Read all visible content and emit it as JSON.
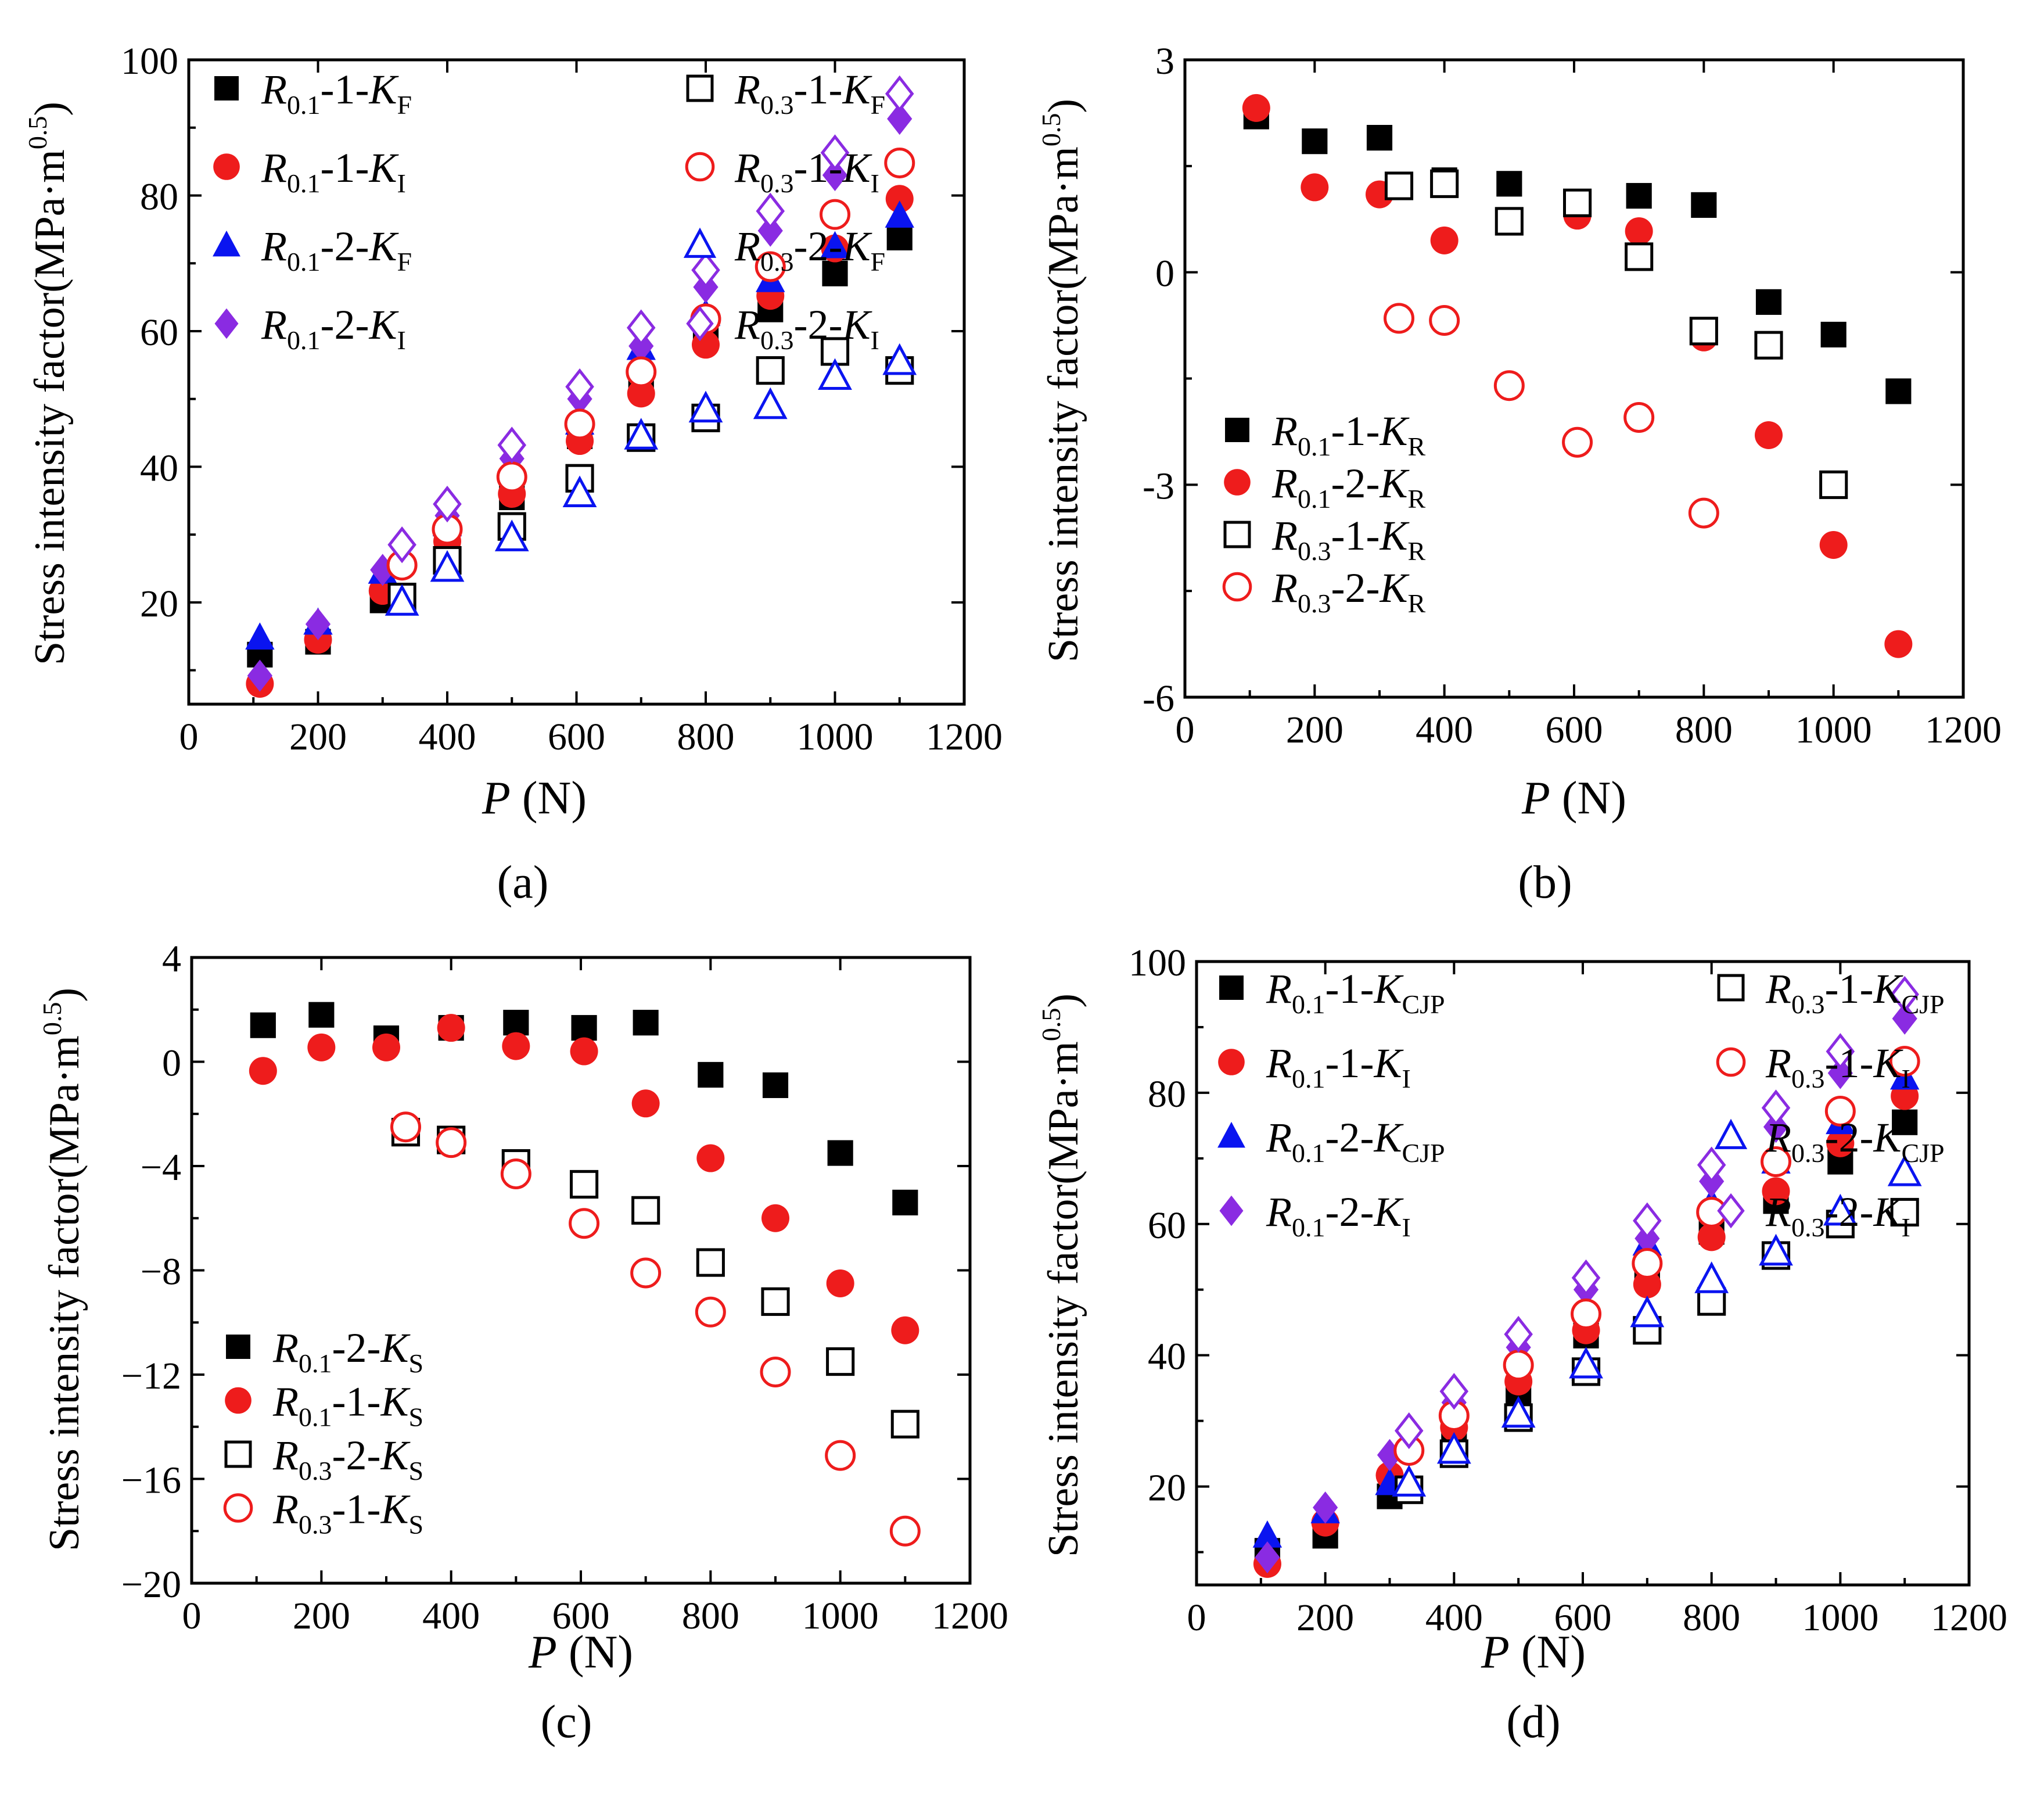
{
  "colors": {
    "black": "#000000",
    "red": "#ee1c1c",
    "blue": "#0a14f0",
    "purple": "#8a2be2"
  },
  "chart_data": [
    {
      "id": "a",
      "type": "scatter",
      "caption": "(a)",
      "ylabel": "Stress intensity factor(MPa·m0.5)",
      "xlabel": "P (N)",
      "xlim": [
        0,
        1200
      ],
      "ylim": [
        5,
        100
      ],
      "xticks": [
        "0",
        "200",
        "400",
        "600",
        "800",
        "1000",
        "1200"
      ],
      "yticks": [
        "20",
        "40",
        "60",
        "80",
        "100"
      ],
      "legend_position": "top-left",
      "legend_columns": 2,
      "series": [
        {
          "name": "R0.1-1-KF",
          "r": "0.1",
          "n": "1",
          "k": "F",
          "marker": "square",
          "fill": true,
          "color": "#000000",
          "x": [
            110,
            200,
            300,
            400,
            500,
            605,
            700,
            800,
            900,
            1000,
            1100
          ],
          "y": [
            12.3,
            14.2,
            20.3,
            27.5,
            35.5,
            44.5,
            53.0,
            59.8,
            63.2,
            68.5,
            73.8
          ]
        },
        {
          "name": "R0.1-1-KI",
          "r": "0.1",
          "n": "1",
          "k": "I",
          "marker": "circle",
          "fill": true,
          "color": "#ee1c1c",
          "x": [
            110,
            200,
            300,
            400,
            500,
            605,
            700,
            800,
            900,
            1000,
            1100
          ],
          "y": [
            8.0,
            14.5,
            21.7,
            29.0,
            36.0,
            43.8,
            50.8,
            58.0,
            65.2,
            72.2,
            79.5
          ]
        },
        {
          "name": "R0.1-2-KF",
          "r": "0.1",
          "n": "2",
          "k": "F",
          "marker": "triangle",
          "fill": true,
          "color": "#0a14f0",
          "x": [
            110,
            200,
            300,
            400,
            500,
            605,
            700,
            800,
            900,
            1000,
            1100
          ],
          "y": [
            14.8,
            17.0,
            24.5,
            31.5,
            39.5,
            46.5,
            57.5,
            62.5,
            67.5,
            72.5,
            77.0
          ]
        },
        {
          "name": "R0.1-2-KI",
          "r": "0.1",
          "n": "2",
          "k": "I",
          "marker": "diamond",
          "fill": true,
          "color": "#8a2be2",
          "x": [
            110,
            200,
            300,
            400,
            500,
            605,
            700,
            800,
            900,
            1000,
            1100
          ],
          "y": [
            9.2,
            16.8,
            24.8,
            32.8,
            41.2,
            50.0,
            57.8,
            66.5,
            74.8,
            83.0,
            91.3
          ]
        },
        {
          "name": "R0.3-1-KF",
          "r": "0.3",
          "n": "1",
          "k": "F",
          "marker": "square",
          "fill": false,
          "color": "#000000",
          "x": [
            330,
            400,
            500,
            605,
            700,
            800,
            900,
            1000,
            1100
          ],
          "y": [
            20.8,
            26.2,
            31.2,
            38.3,
            44.3,
            47.2,
            54.2,
            57.0,
            54.2
          ]
        },
        {
          "name": "R0.3-1-KI",
          "r": "0.3",
          "n": "1",
          "k": "I",
          "marker": "circle",
          "fill": false,
          "color": "#ee1c1c",
          "x": [
            330,
            400,
            500,
            605,
            700,
            800,
            900,
            1000,
            1100
          ],
          "y": [
            25.5,
            30.8,
            38.5,
            46.3,
            54.0,
            61.8,
            69.5,
            77.2,
            84.8
          ]
        },
        {
          "name": "R0.3-2-KF",
          "r": "0.3",
          "n": "2",
          "k": "F",
          "marker": "triangle",
          "fill": false,
          "color": "#0a14f0",
          "x": [
            330,
            400,
            500,
            605,
            700,
            800,
            900,
            1000,
            1100
          ],
          "y": [
            20.0,
            25.0,
            29.5,
            36.0,
            44.5,
            48.5,
            49.0,
            53.3,
            55.5
          ]
        },
        {
          "name": "R0.3-2-KI",
          "r": "0.3",
          "n": "2",
          "k": "I",
          "marker": "diamond",
          "fill": false,
          "color": "#8a2be2",
          "x": [
            330,
            400,
            500,
            605,
            700,
            800,
            900,
            1000,
            1100
          ],
          "y": [
            28.5,
            34.5,
            43.2,
            51.8,
            60.5,
            69.0,
            77.7,
            86.3,
            95.0
          ]
        }
      ]
    },
    {
      "id": "b",
      "type": "scatter",
      "caption": "(b)",
      "ylabel": "Stress intensity factor(MPa·m0.5)",
      "xlabel": "P (N)",
      "xlim": [
        0,
        1200
      ],
      "ylim": [
        -6,
        3
      ],
      "xticks": [
        "0",
        "200",
        "400",
        "600",
        "800",
        "1000",
        "1200"
      ],
      "yticks": [
        "-6",
        "-3",
        "0",
        "3"
      ],
      "legend_position": "bottom-left",
      "legend_columns": 1,
      "series": [
        {
          "name": "R0.1-1-KR",
          "r": "0.1",
          "n": "1",
          "k": "R",
          "marker": "square",
          "fill": true,
          "color": "#000000",
          "x": [
            110,
            200,
            300,
            400,
            500,
            605,
            700,
            800,
            900,
            1000,
            1100
          ],
          "y": [
            2.2,
            1.85,
            1.9,
            1.3,
            1.25,
            0.95,
            1.08,
            0.95,
            -0.42,
            -0.88,
            -1.68
          ]
        },
        {
          "name": "R0.1-2-KR",
          "r": "0.1",
          "n": "2",
          "k": "R",
          "marker": "circle",
          "fill": true,
          "color": "#ee1c1c",
          "x": [
            110,
            200,
            300,
            400,
            500,
            605,
            700,
            800,
            900,
            1000,
            1100
          ],
          "y": [
            2.32,
            1.2,
            1.1,
            0.45,
            0.72,
            0.8,
            0.58,
            -0.92,
            -2.3,
            -3.85,
            -5.25
          ]
        },
        {
          "name": "R0.3-1-KR",
          "r": "0.3",
          "n": "1",
          "k": "R",
          "marker": "square",
          "fill": false,
          "color": "#000000",
          "x": [
            330,
            400,
            500,
            605,
            700,
            800,
            900,
            1000
          ],
          "y": [
            1.22,
            1.25,
            0.72,
            0.98,
            0.22,
            -0.83,
            -1.03,
            -3.0
          ]
        },
        {
          "name": "R0.3-2-KR",
          "r": "0.3",
          "n": "2",
          "k": "R",
          "marker": "circle",
          "fill": false,
          "color": "#ee1c1c",
          "x": [
            330,
            400,
            500,
            605,
            700,
            800
          ],
          "y": [
            -0.65,
            -0.68,
            -1.6,
            -2.4,
            -2.05,
            -3.4
          ]
        }
      ]
    },
    {
      "id": "c",
      "type": "scatter",
      "caption": "(c)",
      "ylabel": "Stress intensity factor(MPa·m0.5)",
      "xlabel": "P (N)",
      "xlim": [
        0,
        1200
      ],
      "ylim": [
        -20,
        4
      ],
      "xticks": [
        "0",
        "200",
        "400",
        "600",
        "800",
        "1000",
        "1200"
      ],
      "yticks": [
        "−20",
        "−16",
        "−12",
        "−8",
        "−4",
        "0",
        "4"
      ],
      "legend_position": "bottom-left",
      "legend_columns": 1,
      "series": [
        {
          "name": "R0.1-2-KS",
          "r": "0.1",
          "n": "2",
          "k": "S",
          "marker": "square",
          "fill": true,
          "color": "#000000",
          "x": [
            110,
            200,
            300,
            400,
            500,
            605,
            700,
            800,
            900,
            1000,
            1100
          ],
          "y": [
            1.4,
            1.8,
            0.9,
            1.3,
            1.5,
            1.3,
            1.5,
            -0.5,
            -0.9,
            -3.5,
            -5.4
          ]
        },
        {
          "name": "R0.1-1-KS",
          "r": "0.1",
          "n": "1",
          "k": "S",
          "marker": "circle",
          "fill": true,
          "color": "#ee1c1c",
          "x": [
            110,
            200,
            300,
            400,
            500,
            605,
            700,
            800,
            900,
            1000,
            1100
          ],
          "y": [
            -0.35,
            0.55,
            0.55,
            1.3,
            0.6,
            0.4,
            -1.6,
            -3.7,
            -6.0,
            -8.5,
            -10.3
          ]
        },
        {
          "name": "R0.3-2-KS",
          "r": "0.3",
          "n": "2",
          "k": "S",
          "marker": "square",
          "fill": false,
          "color": "#000000",
          "x": [
            330,
            400,
            500,
            605,
            700,
            800,
            900,
            1000,
            1100
          ],
          "y": [
            -2.7,
            -3.0,
            -3.9,
            -4.7,
            -5.7,
            -7.7,
            -9.2,
            -11.5,
            -13.9
          ]
        },
        {
          "name": "R0.3-1-KS",
          "r": "0.3",
          "n": "1",
          "k": "S",
          "marker": "circle",
          "fill": false,
          "color": "#ee1c1c",
          "x": [
            330,
            400,
            500,
            605,
            700,
            800,
            900,
            1000,
            1100
          ],
          "y": [
            -2.5,
            -3.1,
            -4.3,
            -6.2,
            -8.1,
            -9.6,
            -11.9,
            -15.1,
            -18.0
          ]
        }
      ]
    },
    {
      "id": "d",
      "type": "scatter",
      "caption": "(d)",
      "ylabel": "Stress intensity factor(MPa·m0.5)",
      "xlabel": "P (N)",
      "xlim": [
        0,
        1200
      ],
      "ylim": [
        5,
        100
      ],
      "xticks": [
        "0",
        "200",
        "400",
        "600",
        "800",
        "1000",
        "1200"
      ],
      "yticks": [
        "20",
        "40",
        "60",
        "80",
        "100"
      ],
      "legend_position": "top-left",
      "legend_columns": 2,
      "series": [
        {
          "name": "R0.1-1-KCJP",
          "r": "0.1",
          "n": "1",
          "k": "CJP",
          "marker": "square",
          "fill": true,
          "color": "#000000",
          "x": [
            110,
            200,
            300,
            400,
            500,
            605,
            700,
            800,
            900,
            1000,
            1100
          ],
          "y": [
            10.2,
            12.5,
            18.5,
            26.5,
            34.0,
            43.0,
            52.2,
            58.8,
            63.5,
            69.5,
            75.5
          ]
        },
        {
          "name": "R0.1-1-KI",
          "r": "0.1",
          "n": "1",
          "k": "I",
          "marker": "circle",
          "fill": true,
          "color": "#ee1c1c",
          "x": [
            110,
            200,
            300,
            400,
            500,
            605,
            700,
            800,
            900,
            1000,
            1100
          ],
          "y": [
            8.2,
            14.5,
            21.7,
            29.0,
            36.0,
            43.8,
            50.8,
            58.0,
            65.0,
            72.3,
            79.5
          ]
        },
        {
          "name": "R0.1-2-KCJP",
          "r": "0.1",
          "n": "2",
          "k": "CJP",
          "marker": "triangle",
          "fill": true,
          "color": "#0a14f0",
          "x": [
            110,
            200,
            300,
            400,
            500,
            605,
            700,
            800,
            900,
            1000,
            1100
          ],
          "y": [
            12.5,
            16.2,
            20.5,
            25.5,
            30.5,
            38.0,
            57.0,
            63.2,
            69.5,
            75.5,
            82.3
          ]
        },
        {
          "name": "R0.1-2-KI",
          "r": "0.1",
          "n": "2",
          "k": "I",
          "marker": "diamond",
          "fill": true,
          "color": "#8a2be2",
          "x": [
            110,
            200,
            300,
            400,
            500,
            605,
            700,
            800,
            900,
            1000,
            1100
          ],
          "y": [
            9.2,
            16.8,
            24.8,
            32.8,
            41.2,
            50.0,
            57.8,
            66.5,
            74.8,
            83.0,
            91.3
          ]
        },
        {
          "name": "R0.3-1-KCJP",
          "r": "0.3",
          "n": "1",
          "k": "CJP",
          "marker": "square",
          "fill": false,
          "color": "#000000",
          "x": [
            330,
            400,
            500,
            605,
            700,
            800,
            900,
            1000,
            1100
          ],
          "y": [
            19.5,
            25.0,
            30.5,
            37.5,
            43.8,
            48.2,
            55.2,
            60.0,
            61.8
          ]
        },
        {
          "name": "R0.3-1-KI",
          "r": "0.3",
          "n": "1",
          "k": "I",
          "marker": "circle",
          "fill": false,
          "color": "#ee1c1c",
          "x": [
            330,
            400,
            500,
            605,
            700,
            800,
            900,
            1000,
            1100
          ],
          "y": [
            25.5,
            30.8,
            38.5,
            46.3,
            54.0,
            61.8,
            69.5,
            77.2,
            84.8
          ]
        },
        {
          "name": "R0.3-2-KCJP",
          "r": "0.3",
          "n": "2",
          "k": "CJP",
          "marker": "triangle",
          "fill": false,
          "color": "#0a14f0",
          "x": [
            330,
            400,
            500,
            605,
            700,
            800,
            900,
            1000,
            1100
          ],
          "y": [
            20.5,
            25.5,
            31.0,
            38.5,
            46.3,
            51.5,
            55.7,
            61.8,
            67.8
          ]
        },
        {
          "name": "R0.3-2-KI",
          "r": "0.3",
          "n": "2",
          "k": "I",
          "marker": "diamond",
          "fill": false,
          "color": "#8a2be2",
          "x": [
            330,
            400,
            500,
            605,
            700,
            800,
            900,
            1000,
            1100
          ],
          "y": [
            28.5,
            34.5,
            43.2,
            51.8,
            60.5,
            69.0,
            77.7,
            86.3,
            95.0
          ]
        }
      ]
    }
  ]
}
